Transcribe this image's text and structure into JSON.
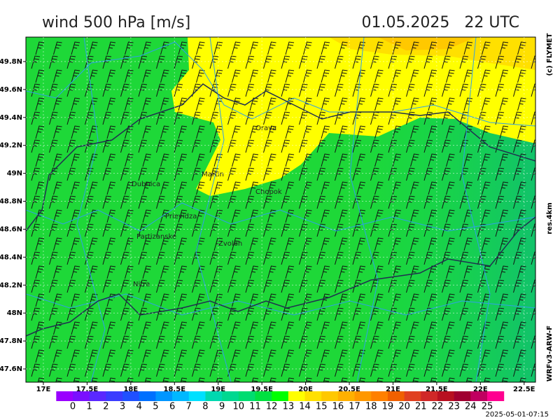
{
  "header": {
    "title": "wind 500 hPa [m/s]",
    "time": "01.05.2025   22 UTC"
  },
  "side": {
    "copyright": "(c) FLYMET",
    "resolution": "res.4km",
    "model": "WRFv3-ARW-F"
  },
  "footer": {
    "stamp": "2025-05-01-07:15"
  },
  "map": {
    "xlim": [
      16.8,
      22.63
    ],
    "ylim": [
      47.505,
      49.975
    ],
    "xticks": [
      {
        "value": 17,
        "label": "17E"
      },
      {
        "value": 17.5,
        "label": "17.5E"
      },
      {
        "value": 18,
        "label": "18E"
      },
      {
        "value": 18.5,
        "label": "18.5E"
      },
      {
        "value": 19,
        "label": "19E"
      },
      {
        "value": 19.5,
        "label": "19.5E"
      },
      {
        "value": 20,
        "label": "20E"
      },
      {
        "value": 20.5,
        "label": "20.5E"
      },
      {
        "value": 21,
        "label": "21E"
      },
      {
        "value": 21.5,
        "label": "21.5E"
      },
      {
        "value": 22,
        "label": "22E"
      },
      {
        "value": 22.5,
        "label": "22.5E"
      }
    ],
    "yticks": [
      {
        "value": 47.6,
        "label": "47.6N"
      },
      {
        "value": 47.8,
        "label": "47.8N"
      },
      {
        "value": 48,
        "label": "48N"
      },
      {
        "value": 48.2,
        "label": "48.2N"
      },
      {
        "value": 48.4,
        "label": "48.4N"
      },
      {
        "value": 48.6,
        "label": "48.6N"
      },
      {
        "value": 48.8,
        "label": "48.8N"
      },
      {
        "value": 49,
        "label": "49N"
      },
      {
        "value": 49.2,
        "label": "49.2N"
      },
      {
        "value": 49.4,
        "label": "49.4N"
      },
      {
        "value": 49.6,
        "label": "49.6N"
      },
      {
        "value": 49.8,
        "label": "49.8N"
      }
    ],
    "cities": [
      "Orava",
      "Martin",
      "Dubnica",
      "Chopok",
      "Prievidza",
      "Partizanske",
      "Zvolen",
      "Nitra"
    ]
  },
  "colorbar": {
    "ticks": [
      0,
      1,
      2,
      3,
      4,
      5,
      6,
      7,
      8,
      9,
      10,
      11,
      12,
      13,
      14,
      15,
      16,
      17,
      18,
      19,
      20,
      21,
      22,
      23,
      24,
      25
    ],
    "colors": [
      "#9a00ff",
      "#7a10ff",
      "#5a28ff",
      "#3a3cff",
      "#2050ff",
      "#0070ff",
      "#0096ff",
      "#00b8ff",
      "#00e0ff",
      "#00d8b0",
      "#00d890",
      "#00dc70",
      "#00e040",
      "#00ff00",
      "#ffff00",
      "#ffe000",
      "#ffc800",
      "#ffb000",
      "#ff9800",
      "#ff8000",
      "#f06000",
      "#e04020",
      "#d02828",
      "#b81020",
      "#a00030",
      "#c00060",
      "#ff0090"
    ]
  }
}
